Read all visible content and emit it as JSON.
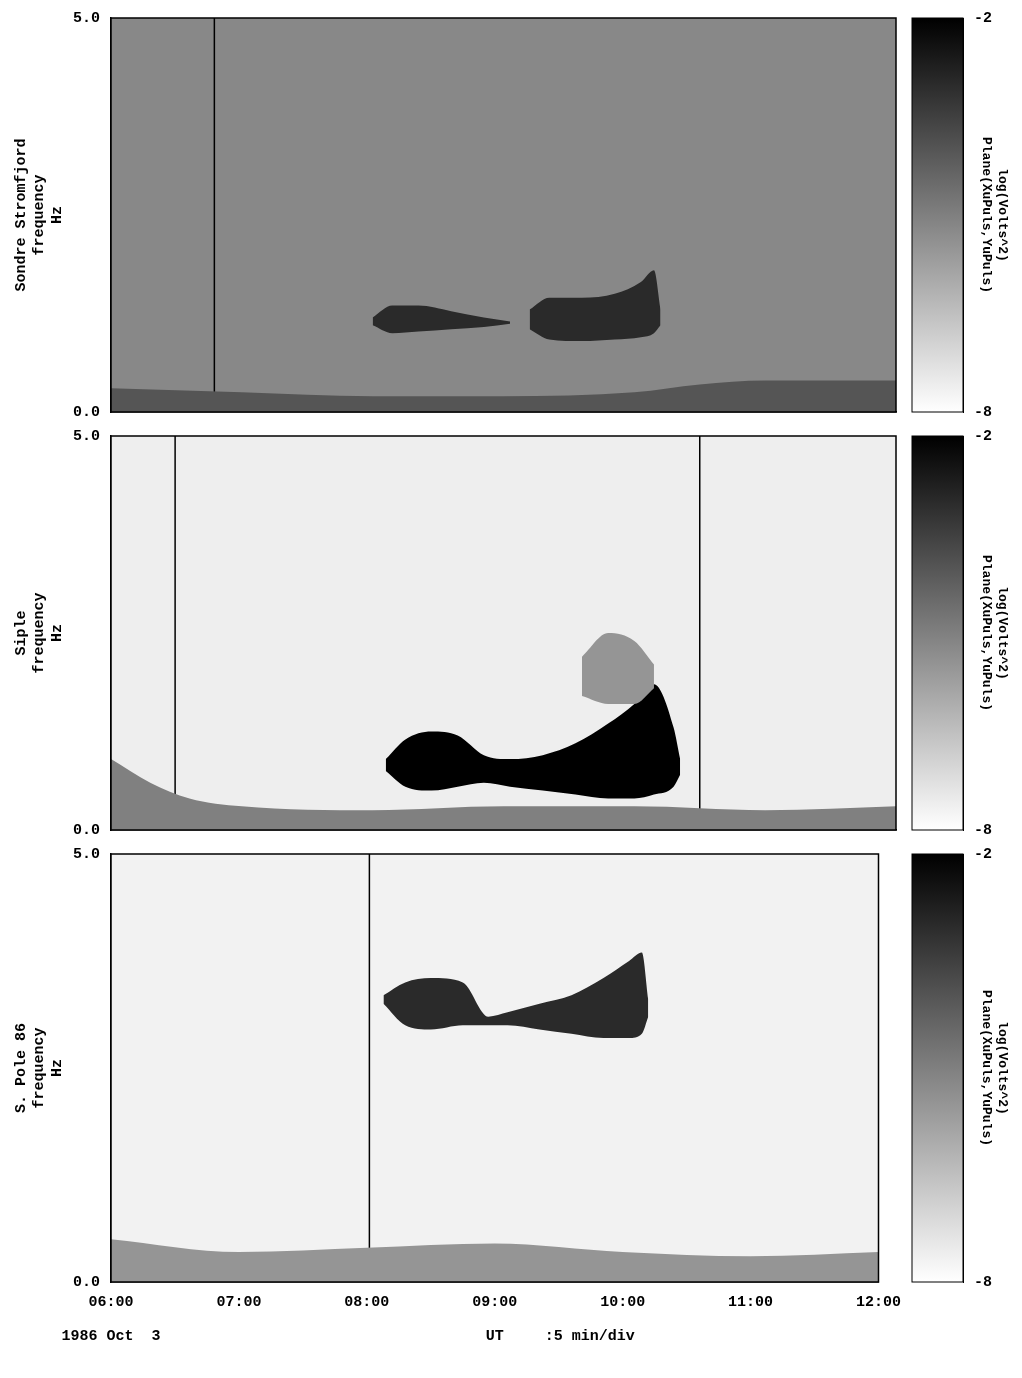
{
  "chart_data": [
    {
      "type": "spectrogram",
      "ylabel": [
        "Sondre Stromfjord",
        "frequency",
        "Hz"
      ],
      "xlim": [
        6,
        12
      ],
      "ylim": [
        0,
        5
      ],
      "yticks": [
        {
          "value": 0,
          "label": "0.0"
        },
        {
          "value": 5,
          "label": "5.0"
        }
      ],
      "grid": false,
      "tick_labels": "y",
      "background_level": -5.2,
      "emissions": [
        {
          "level": -4,
          "time": [
            6,
            7,
            8,
            9,
            10,
            10.5,
            11,
            12
          ],
          "low": [
            0,
            0,
            0,
            0,
            0,
            0,
            0,
            0
          ],
          "high": [
            0.3,
            0.25,
            0.2,
            0.2,
            0.25,
            0.35,
            0.4,
            0.4
          ]
        },
        {
          "level": -3,
          "time": [
            8.0,
            8.15,
            8.35,
            8.6,
            8.85,
            9.05
          ],
          "low": [
            1.1,
            1.0,
            1.02,
            1.05,
            1.08,
            1.12
          ],
          "high": [
            1.2,
            1.35,
            1.35,
            1.28,
            1.2,
            1.15
          ]
        },
        {
          "level": -3,
          "time": [
            9.2,
            9.35,
            9.6,
            9.85,
            10.05,
            10.15,
            10.2
          ],
          "low": [
            1.05,
            0.92,
            0.9,
            0.92,
            0.95,
            1.0,
            1.1
          ],
          "high": [
            1.3,
            1.45,
            1.45,
            1.5,
            1.65,
            1.8,
            1.3
          ]
        }
      ],
      "vertical_lines": [
        6.79
      ],
      "colorbar": {
        "label": [
          "log(Volts^2)",
          "Plane(XuPuls,YuPuls)"
        ],
        "range": [
          -8,
          -2
        ],
        "ticks": [
          -8,
          -2
        ]
      }
    },
    {
      "type": "spectrogram",
      "ylabel": [
        "Siple",
        "frequency",
        "Hz"
      ],
      "xlim": [
        6,
        12
      ],
      "ylim": [
        0,
        5
      ],
      "yticks": [
        {
          "value": 0,
          "label": "0.0"
        },
        {
          "value": 5,
          "label": "5.0"
        }
      ],
      "grid": false,
      "tick_labels": "y",
      "background_level": -7.6,
      "emissions": [
        {
          "level": -5,
          "time": [
            6,
            6.3,
            6.6,
            7,
            8,
            9,
            10,
            11,
            12
          ],
          "low": [
            0,
            0,
            0,
            0,
            0,
            0,
            0,
            0,
            0
          ],
          "high": [
            0.9,
            0.6,
            0.4,
            0.3,
            0.25,
            0.3,
            0.3,
            0.25,
            0.3
          ]
        },
        {
          "level": -5.5,
          "time": [
            9.6,
            9.8,
            10.0,
            10.15
          ],
          "low": [
            1.7,
            1.6,
            1.6,
            1.8
          ],
          "high": [
            2.2,
            2.5,
            2.4,
            2.1
          ]
        },
        {
          "level": -2,
          "time": [
            8.1,
            8.25,
            8.45,
            8.65,
            8.85,
            9.05,
            9.3,
            9.55,
            9.8,
            10.0,
            10.15,
            10.3,
            10.35
          ],
          "low": [
            0.75,
            0.55,
            0.5,
            0.55,
            0.6,
            0.55,
            0.5,
            0.45,
            0.4,
            0.4,
            0.45,
            0.55,
            0.7
          ],
          "high": [
            0.9,
            1.15,
            1.25,
            1.2,
            0.95,
            0.9,
            0.95,
            1.1,
            1.35,
            1.6,
            1.85,
            1.3,
            0.9
          ]
        }
      ],
      "vertical_lines": [
        6.49,
        10.5
      ],
      "colorbar": {
        "label": [
          "log(Volts^2)",
          "Plane(XuPuls,YuPuls)"
        ],
        "range": [
          -8,
          -2
        ],
        "ticks": [
          -8,
          -2
        ]
      }
    },
    {
      "type": "spectrogram",
      "ylabel": [
        "S. Pole 86",
        "frequency",
        "Hz"
      ],
      "xlim": [
        6,
        12
      ],
      "xticks": [
        {
          "value": 6,
          "label": "06:00"
        },
        {
          "value": 7,
          "label": "07:00"
        },
        {
          "value": 8,
          "label": "08:00"
        },
        {
          "value": 9,
          "label": "09:00"
        },
        {
          "value": 10,
          "label": "10:00"
        },
        {
          "value": 11,
          "label": "11:00"
        },
        {
          "value": 12,
          "label": "12:00"
        }
      ],
      "xlabel": "UT",
      "date": "1986 Oct  3",
      "xscale_note": ":5 min/div",
      "ylim": [
        0,
        5
      ],
      "yticks": [
        {
          "value": 0,
          "label": "0.0"
        },
        {
          "value": 5,
          "label": "5.0"
        }
      ],
      "grid": false,
      "background_level": -7.7,
      "emissions": [
        {
          "level": -5.5,
          "time": [
            6,
            7,
            8,
            9,
            10,
            11,
            12
          ],
          "low": [
            0,
            0,
            0,
            0,
            0,
            0,
            0
          ],
          "high": [
            0.5,
            0.35,
            0.4,
            0.45,
            0.35,
            0.3,
            0.35
          ]
        },
        {
          "level": -3,
          "time": [
            8.13,
            8.3,
            8.5,
            8.75,
            8.95,
            9.1,
            9.35,
            9.6,
            9.85,
            10.05,
            10.15,
            10.2
          ],
          "low": [
            3.25,
            3.0,
            2.95,
            3.0,
            3.0,
            3.0,
            2.95,
            2.9,
            2.85,
            2.85,
            2.9,
            3.1
          ],
          "high": [
            3.35,
            3.5,
            3.55,
            3.5,
            3.1,
            3.15,
            3.25,
            3.35,
            3.55,
            3.75,
            3.85,
            3.3
          ]
        }
      ],
      "vertical_lines": [
        8.02
      ],
      "colorbar": {
        "label": [
          "log(Volts^2)",
          "Plane(XuPuls,YuPuls)"
        ],
        "range": [
          -8,
          -2
        ],
        "ticks": [
          -8,
          -2
        ]
      }
    }
  ]
}
